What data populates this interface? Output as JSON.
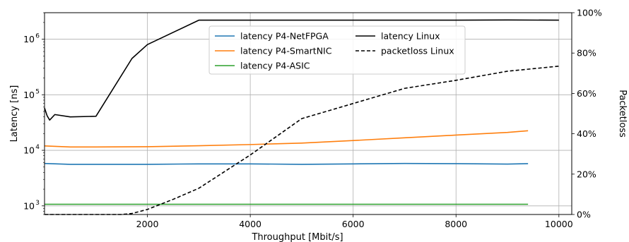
{
  "chart_data": {
    "type": "line",
    "xlabel": "Throughput [Mbit/s]",
    "ylabel_left": "Latency [ns]",
    "ylabel_right": "Packetloss",
    "left_axis": {
      "scale": "log",
      "range": [
        700,
        3000000
      ],
      "ticks": [
        1000,
        10000,
        100000,
        1000000
      ],
      "tick_labels": [
        [
          "10",
          "3"
        ],
        [
          "10",
          "4"
        ],
        [
          "10",
          "5"
        ],
        [
          "10",
          "6"
        ]
      ]
    },
    "right_axis": {
      "scale": "linear",
      "range": [
        0,
        100
      ],
      "ticks": [
        0,
        20,
        40,
        60,
        80,
        100
      ],
      "tick_labels": [
        "0%",
        "20%",
        "40%",
        "60%",
        "80%",
        "100%"
      ]
    },
    "x_axis": {
      "range": [
        0,
        10250
      ],
      "ticks": [
        2000,
        4000,
        6000,
        8000,
        10000
      ],
      "tick_labels": [
        "2000",
        "4000",
        "6000",
        "8000",
        "10000"
      ]
    },
    "grid": true,
    "legend_position": "top-center",
    "series": [
      {
        "name": "latency P4-NetFPGA",
        "axis": "left",
        "color": "#1f77b4",
        "dash": "solid",
        "x": [
          0,
          500,
          1000,
          2000,
          3000,
          4000,
          5000,
          6000,
          7000,
          8000,
          9000,
          9400
        ],
        "y": [
          5800,
          5600,
          5600,
          5600,
          5700,
          5700,
          5600,
          5700,
          5800,
          5750,
          5650,
          5750
        ]
      },
      {
        "name": "latency P4-SmartNIC",
        "axis": "left",
        "color": "#ff7f0e",
        "dash": "solid",
        "x": [
          0,
          500,
          1000,
          2000,
          3000,
          4000,
          5000,
          6000,
          7000,
          8000,
          9000,
          9400
        ],
        "y": [
          12000,
          11500,
          11500,
          11600,
          12100,
          12700,
          13500,
          15000,
          16800,
          18800,
          21000,
          22500
        ]
      },
      {
        "name": "latency P4-ASIC",
        "axis": "left",
        "color": "#2ca02c",
        "dash": "solid",
        "x": [
          0,
          2000,
          4000,
          6000,
          8000,
          9400
        ],
        "y": [
          1070,
          1070,
          1070,
          1070,
          1070,
          1070
        ]
      },
      {
        "name": "latency Linux",
        "axis": "left",
        "color": "#000000",
        "dash": "solid",
        "x": [
          0,
          50,
          100,
          200,
          500,
          1000,
          1700,
          2000,
          3000,
          4000,
          5000,
          6000,
          7000,
          8000,
          9000,
          10000
        ],
        "y": [
          58000,
          42000,
          35000,
          44000,
          40000,
          41000,
          450000,
          800000,
          2200000,
          2200000,
          2200000,
          2200000,
          2200000,
          2200000,
          2220000,
          2200000
        ]
      },
      {
        "name": "packetloss Linux",
        "axis": "right",
        "color": "#000000",
        "dash": "dashed",
        "x": [
          0,
          1500,
          1700,
          2000,
          2500,
          3000,
          4000,
          5000,
          6000,
          7000,
          8000,
          9000,
          10000
        ],
        "y": [
          0,
          0,
          0.5,
          2.5,
          7.5,
          13,
          29.5,
          47.5,
          55,
          62.5,
          66.5,
          71,
          73.5
        ]
      }
    ]
  }
}
